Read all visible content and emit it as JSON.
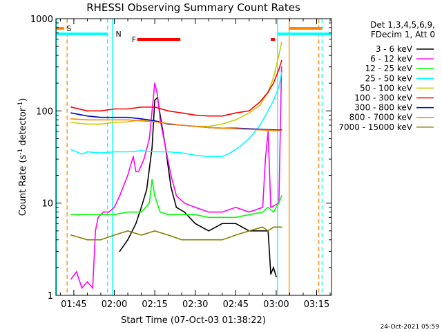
{
  "chart_data": {
    "type": "line",
    "title": "RHESSI Observing Summary Count Rates",
    "xlabel": "Start Time (07-Oct-03 01:38:22)",
    "ylabel_main": "Count Rate (s",
    "ylabel_sup1": "-1",
    "ylabel_mid": " detector",
    "ylabel_sup2": "-1",
    "ylabel_end": ")",
    "y_scale": "log",
    "ylim": [
      1,
      1000
    ],
    "xlim_minutes": [
      98.37,
      200.5
    ],
    "x_ticks": [
      {
        "label": "01:45",
        "m": 105
      },
      {
        "label": "02:00",
        "m": 120
      },
      {
        "label": "02:15",
        "m": 135
      },
      {
        "label": "02:30",
        "m": 150
      },
      {
        "label": "02:45",
        "m": 165
      },
      {
        "label": "03:00",
        "m": 180
      },
      {
        "label": "03:15",
        "m": 195
      }
    ],
    "y_ticks": [
      {
        "label": "1",
        "v": 1
      },
      {
        "label": "10",
        "v": 10
      },
      {
        "label": "100",
        "v": 100
      },
      {
        "label": "1000",
        "v": 1000
      }
    ],
    "legend_header": [
      "Det 1,3,4,5,6,9,",
      "FDecim 1, Att 0"
    ],
    "series": [
      {
        "name": "3 - 6 keV",
        "color": "#000000",
        "points": [
          [
            122,
            3
          ],
          [
            125,
            4
          ],
          [
            128,
            6
          ],
          [
            130,
            9
          ],
          [
            132,
            14
          ],
          [
            134,
            40
          ],
          [
            135,
            130
          ],
          [
            136,
            140
          ],
          [
            137,
            90
          ],
          [
            139,
            40
          ],
          [
            141,
            15
          ],
          [
            143,
            9
          ],
          [
            146,
            8
          ],
          [
            150,
            6
          ],
          [
            155,
            5
          ],
          [
            160,
            6
          ],
          [
            165,
            6
          ],
          [
            170,
            5
          ],
          [
            175,
            5
          ],
          [
            177,
            5
          ],
          [
            178,
            1.7
          ],
          [
            179,
            2
          ],
          [
            180,
            1.6
          ]
        ]
      },
      {
        "name": "6 - 12 keV",
        "color": "#ff00ff",
        "points": [
          [
            104,
            1.5
          ],
          [
            106,
            1.8
          ],
          [
            108,
            1.2
          ],
          [
            110,
            1.4
          ],
          [
            112,
            1.2
          ],
          [
            113,
            5
          ],
          [
            114,
            7
          ],
          [
            116,
            8
          ],
          [
            118,
            8
          ],
          [
            120,
            9
          ],
          [
            122,
            12
          ],
          [
            125,
            20
          ],
          [
            127,
            32
          ],
          [
            128,
            22
          ],
          [
            129,
            22
          ],
          [
            131,
            30
          ],
          [
            133,
            50
          ],
          [
            134,
            100
          ],
          [
            135,
            200
          ],
          [
            136,
            150
          ],
          [
            137,
            80
          ],
          [
            139,
            40
          ],
          [
            141,
            20
          ],
          [
            143,
            12
          ],
          [
            146,
            10
          ],
          [
            150,
            9
          ],
          [
            155,
            8
          ],
          [
            160,
            8
          ],
          [
            165,
            9
          ],
          [
            170,
            8
          ],
          [
            175,
            9
          ],
          [
            176,
            30
          ],
          [
            177,
            60
          ],
          [
            178,
            9
          ],
          [
            181,
            10
          ],
          [
            182,
            300
          ]
        ]
      },
      {
        "name": "12 - 25 keV",
        "color": "#00ff00",
        "points": [
          [
            104,
            7.5
          ],
          [
            110,
            7.5
          ],
          [
            115,
            7.5
          ],
          [
            120,
            7.5
          ],
          [
            125,
            8
          ],
          [
            130,
            8
          ],
          [
            133,
            10
          ],
          [
            134,
            18
          ],
          [
            135,
            12
          ],
          [
            137,
            8
          ],
          [
            140,
            7.5
          ],
          [
            145,
            7.5
          ],
          [
            150,
            7.5
          ],
          [
            155,
            7
          ],
          [
            160,
            7
          ],
          [
            165,
            7
          ],
          [
            170,
            7.5
          ],
          [
            175,
            8
          ],
          [
            177,
            9
          ],
          [
            179,
            8
          ],
          [
            181,
            10
          ],
          [
            182,
            12
          ]
        ]
      },
      {
        "name": "25 - 50 keV",
        "color": "#00ffff",
        "points": [
          [
            104,
            38
          ],
          [
            108,
            34
          ],
          [
            110,
            36
          ],
          [
            115,
            35
          ],
          [
            120,
            36
          ],
          [
            125,
            36
          ],
          [
            130,
            37
          ],
          [
            135,
            36
          ],
          [
            140,
            36
          ],
          [
            145,
            35
          ],
          [
            150,
            33
          ],
          [
            155,
            32
          ],
          [
            160,
            32
          ],
          [
            163,
            35
          ],
          [
            166,
            40
          ],
          [
            170,
            50
          ],
          [
            174,
            70
          ],
          [
            177,
            100
          ],
          [
            179,
            130
          ],
          [
            181,
            180
          ],
          [
            182,
            260
          ]
        ]
      },
      {
        "name": "50 - 100 keV",
        "color": "#cccc00",
        "points": [
          [
            104,
            75
          ],
          [
            110,
            72
          ],
          [
            115,
            72
          ],
          [
            120,
            75
          ],
          [
            125,
            76
          ],
          [
            130,
            80
          ],
          [
            135,
            78
          ],
          [
            140,
            72
          ],
          [
            145,
            70
          ],
          [
            150,
            68
          ],
          [
            155,
            68
          ],
          [
            160,
            72
          ],
          [
            165,
            80
          ],
          [
            170,
            95
          ],
          [
            174,
            115
          ],
          [
            177,
            160
          ],
          [
            179,
            230
          ],
          [
            181,
            400
          ],
          [
            182,
            550
          ]
        ]
      },
      {
        "name": "100 - 300 keV",
        "color": "#ff0000",
        "points": [
          [
            104,
            110
          ],
          [
            110,
            100
          ],
          [
            115,
            100
          ],
          [
            120,
            105
          ],
          [
            125,
            105
          ],
          [
            130,
            110
          ],
          [
            135,
            110
          ],
          [
            140,
            100
          ],
          [
            145,
            95
          ],
          [
            150,
            90
          ],
          [
            155,
            88
          ],
          [
            160,
            88
          ],
          [
            165,
            95
          ],
          [
            170,
            100
          ],
          [
            174,
            125
          ],
          [
            177,
            160
          ],
          [
            179,
            200
          ],
          [
            181,
            280
          ],
          [
            182,
            350
          ]
        ]
      },
      {
        "name": "300 - 800 keV",
        "color": "#0000cc",
        "points": [
          [
            104,
            95
          ],
          [
            110,
            88
          ],
          [
            115,
            85
          ],
          [
            120,
            85
          ],
          [
            125,
            85
          ],
          [
            130,
            82
          ],
          [
            135,
            78
          ],
          [
            140,
            72
          ],
          [
            145,
            70
          ],
          [
            150,
            68
          ],
          [
            155,
            66
          ],
          [
            160,
            65
          ],
          [
            165,
            65
          ],
          [
            170,
            64
          ],
          [
            175,
            63
          ],
          [
            180,
            62
          ],
          [
            182,
            62
          ]
        ]
      },
      {
        "name": "800 - 7000 keV",
        "color": "#ff8800",
        "points": [
          [
            104,
            82
          ],
          [
            110,
            80
          ],
          [
            115,
            80
          ],
          [
            120,
            80
          ],
          [
            125,
            80
          ],
          [
            130,
            78
          ],
          [
            135,
            76
          ],
          [
            140,
            73
          ],
          [
            145,
            70
          ],
          [
            150,
            68
          ],
          [
            155,
            66
          ],
          [
            160,
            65
          ],
          [
            165,
            64
          ],
          [
            170,
            63
          ],
          [
            175,
            62
          ],
          [
            180,
            61
          ],
          [
            182,
            61
          ]
        ]
      },
      {
        "name": "7000 - 15000 keV",
        "color": "#808000",
        "points": [
          [
            104,
            4.5
          ],
          [
            110,
            4
          ],
          [
            115,
            4
          ],
          [
            120,
            4.5
          ],
          [
            125,
            5
          ],
          [
            130,
            4.5
          ],
          [
            135,
            5
          ],
          [
            140,
            4.5
          ],
          [
            145,
            4
          ],
          [
            150,
            4
          ],
          [
            155,
            4
          ],
          [
            160,
            4
          ],
          [
            165,
            4.5
          ],
          [
            170,
            5
          ],
          [
            175,
            5.5
          ],
          [
            177,
            5
          ],
          [
            179,
            5.5
          ],
          [
            181,
            5.5
          ],
          [
            182,
            5.5
          ]
        ]
      }
    ],
    "overlays": [
      {
        "kind": "orange-dashed",
        "m": 102.5
      },
      {
        "kind": "orange-solid",
        "m": 184.8
      },
      {
        "kind": "orange-dashed",
        "m": 195.8
      },
      {
        "kind": "cyan-solid",
        "m": 98.6
      },
      {
        "kind": "cyan-dashed",
        "m": 117.5
      },
      {
        "kind": "cyan-solid",
        "m": 119.3
      },
      {
        "kind": "cyan-solid",
        "m": 180.5
      },
      {
        "kind": "cyan-dashed",
        "m": 197.0
      }
    ],
    "bars": [
      {
        "label": "S",
        "color": "#ff8800",
        "y": 1000,
        "segments": [
          [
            98.37,
            101.5
          ],
          [
            184.8,
            197.0
          ]
        ]
      },
      {
        "label": "N",
        "color": "#00ffff",
        "y": 1000,
        "segments": [
          [
            98.37,
            117.5
          ],
          [
            180.5,
            200.5
          ]
        ]
      },
      {
        "label": "F",
        "color": "#ff0000",
        "y": 1000,
        "segments": [
          [
            128.5,
            144.5
          ],
          [
            178.0,
            179.5
          ]
        ]
      }
    ],
    "timestamp": "24-Oct-2021 05:59"
  }
}
